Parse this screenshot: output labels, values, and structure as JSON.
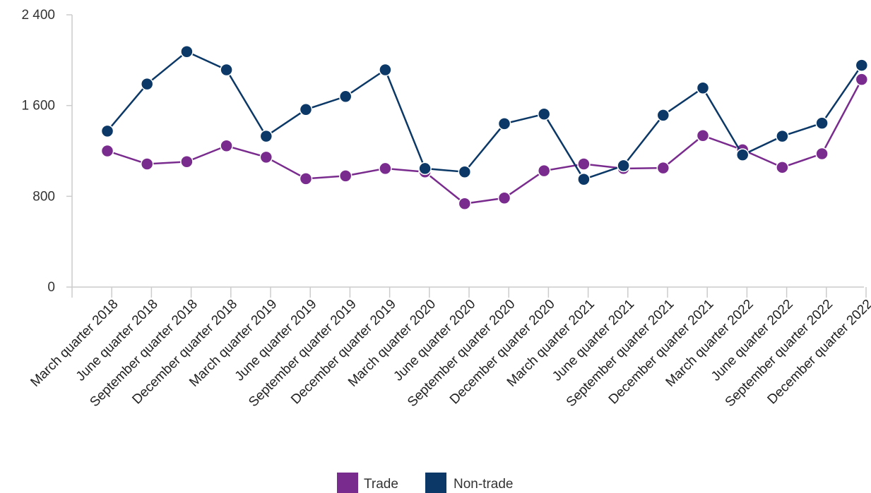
{
  "chart_data": {
    "type": "line",
    "title": "",
    "xlabel": "",
    "ylabel": "",
    "ylim": [
      0,
      2400
    ],
    "y_ticks": [
      0,
      800,
      1600,
      2400
    ],
    "y_tick_labels": [
      "0",
      "800",
      "1 600",
      "2 400"
    ],
    "grid": false,
    "legend_position": "bottom-center",
    "categories": [
      "March quarter 2018",
      "June quarter 2018",
      "September quarter 2018",
      "December quarter 2018",
      "March quarter 2019",
      "June quarter 2019",
      "September quarter 2019",
      "December quarter 2019",
      "March quarter 2020",
      "June quarter 2020",
      "September quarter 2020",
      "December quarter 2020",
      "March quarter 2021",
      "June quarter 2021",
      "September quarter 2021",
      "December quarter 2021",
      "March quarter 2022",
      "June quarter 2022",
      "September quarter 2022",
      "December quarter 2022"
    ],
    "series": [
      {
        "name": "Trade",
        "color": "#7a2c8e",
        "values": [
          1200,
          1085,
          1105,
          1245,
          1145,
          955,
          980,
          1045,
          1015,
          735,
          785,
          1025,
          1085,
          1045,
          1050,
          1335,
          1210,
          1055,
          1175,
          1830
        ]
      },
      {
        "name": "Non-trade",
        "color": "#0b3866",
        "values": [
          1375,
          1790,
          2075,
          1915,
          1330,
          1565,
          1680,
          1915,
          1045,
          1015,
          1440,
          1525,
          950,
          1070,
          1515,
          1755,
          1165,
          1330,
          1445,
          1955
        ]
      }
    ]
  }
}
